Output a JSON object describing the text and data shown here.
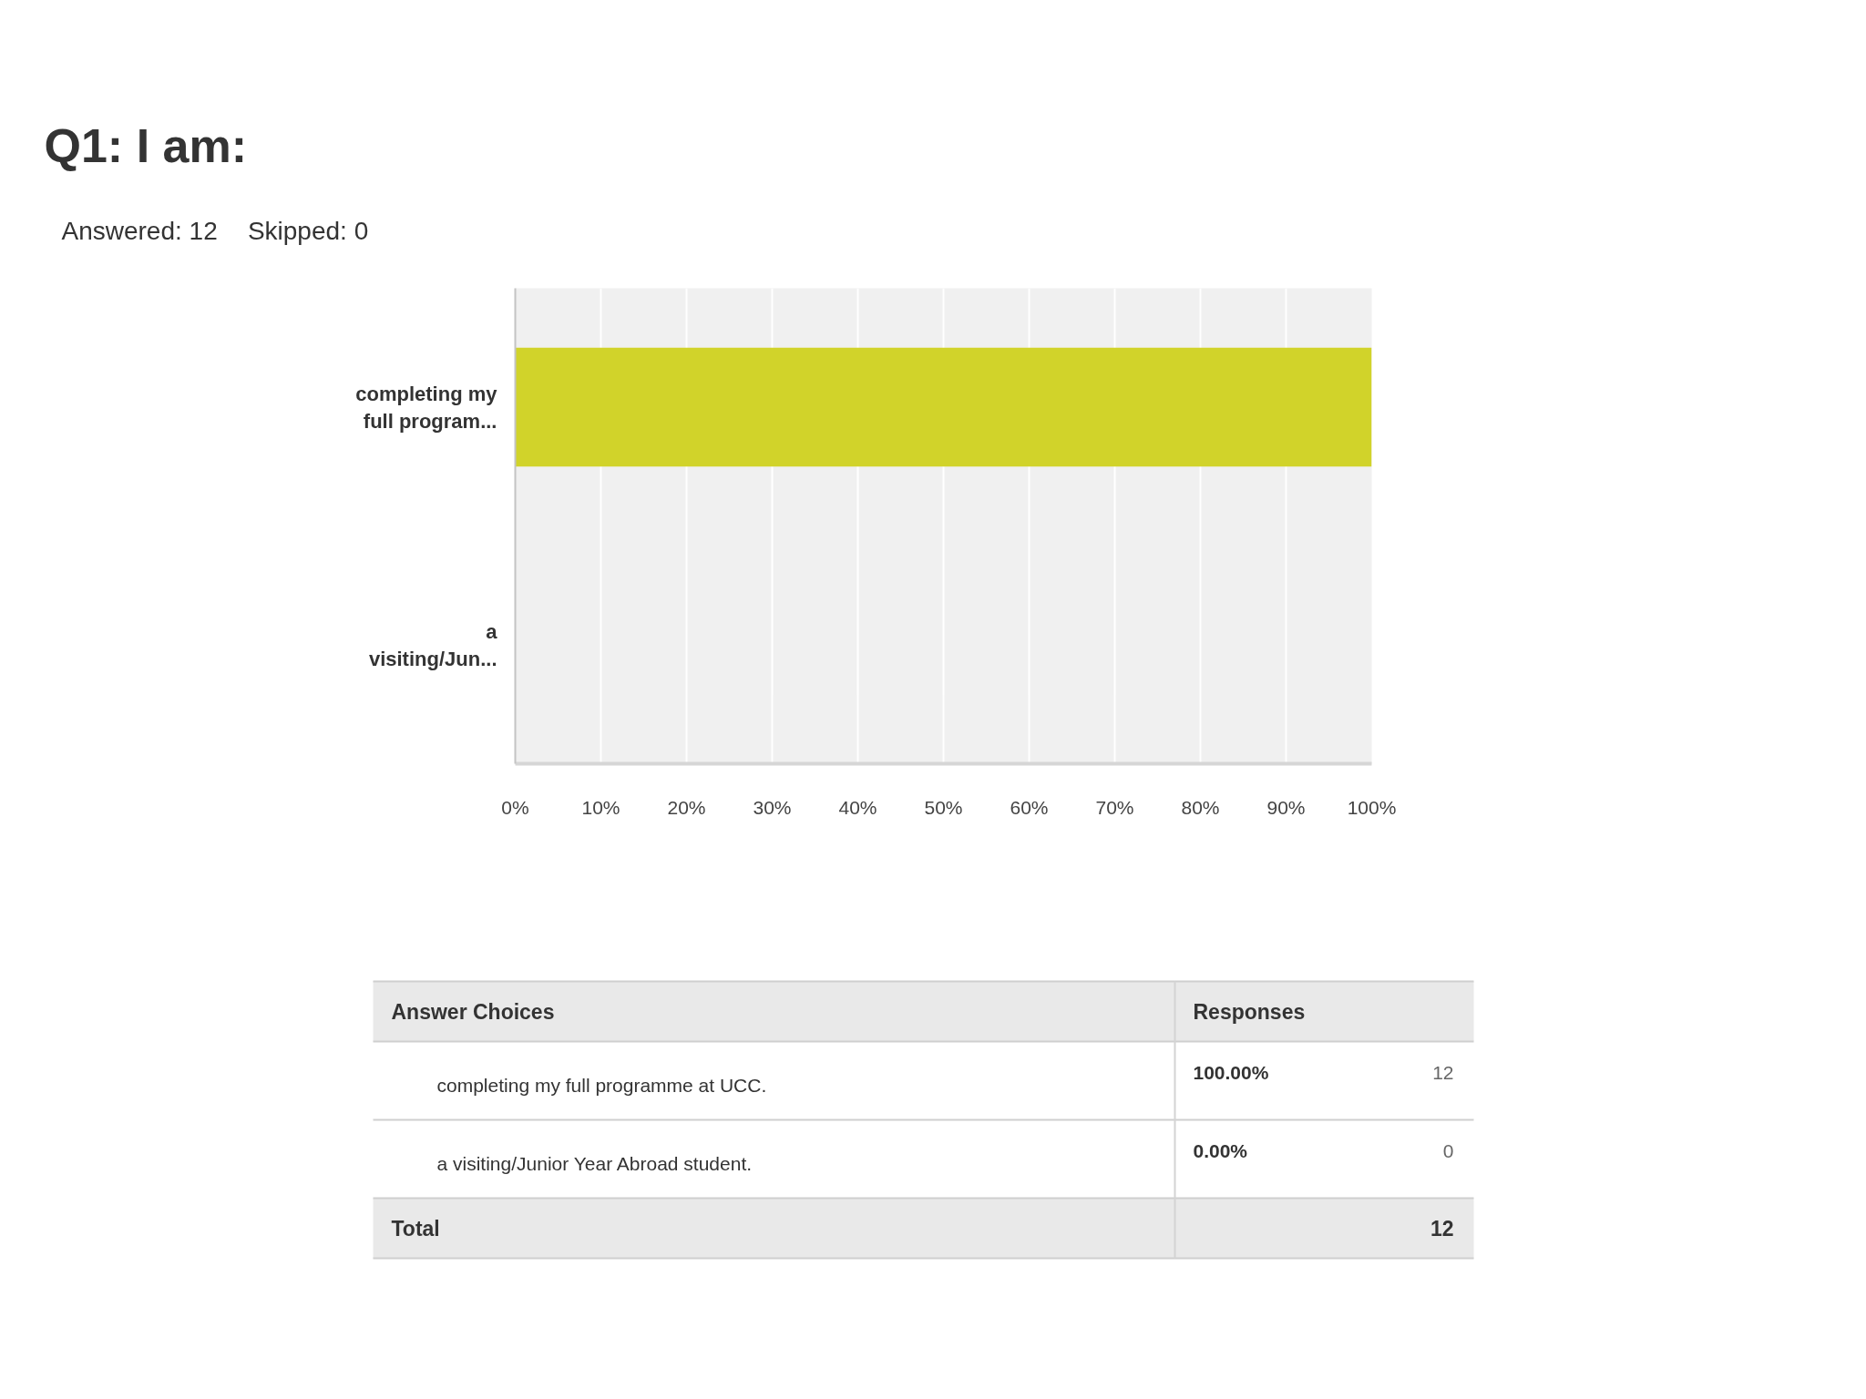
{
  "chart_data": {
    "type": "bar",
    "orientation": "horizontal",
    "title": "Q1: I am:",
    "subtitle": "Answered: 12    Skipped: 0",
    "categories": [
      "completing my full program...",
      "a visiting/Jun..."
    ],
    "values": [
      100,
      0
    ],
    "color": "#d1d32a",
    "xlim": [
      0,
      100
    ],
    "xticks": [
      {
        "value": 0,
        "label": "0%"
      },
      {
        "value": 10,
        "label": "10%"
      },
      {
        "value": 20,
        "label": "20%"
      },
      {
        "value": 30,
        "label": "30%"
      },
      {
        "value": 40,
        "label": "40%"
      },
      {
        "value": 50,
        "label": "50%"
      },
      {
        "value": 60,
        "label": "60%"
      },
      {
        "value": 70,
        "label": "70%"
      },
      {
        "value": 80,
        "label": "80%"
      },
      {
        "value": 90,
        "label": "90%"
      },
      {
        "value": 100,
        "label": "100%"
      }
    ],
    "grid": "x",
    "annotations": [
      "Answer Choices",
      "Responses",
      "completing my full programme at UCC.",
      "a visiting/Junior Year Abroad student.",
      "100.00%",
      "0.00%",
      "12",
      "0",
      "Total",
      "12"
    ]
  }
}
